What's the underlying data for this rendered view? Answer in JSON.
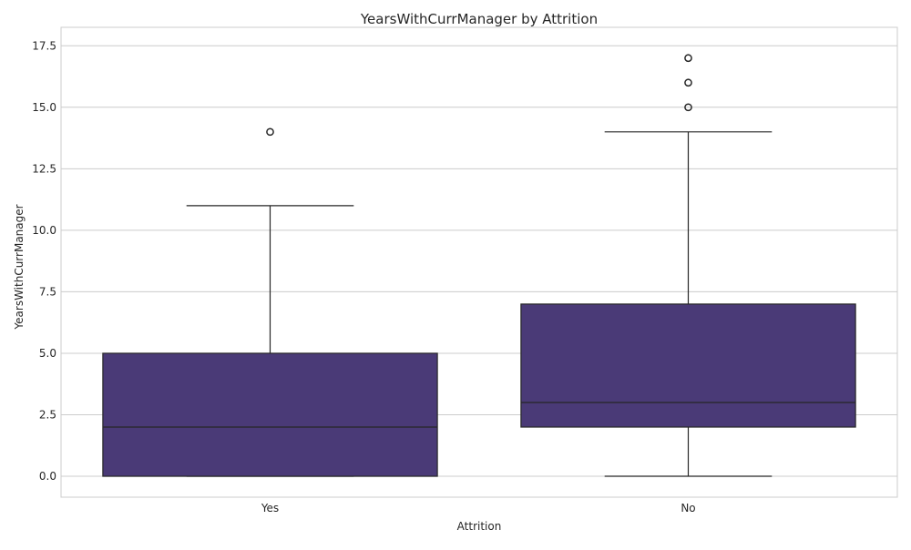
{
  "chart_data": {
    "type": "box",
    "title": "YearsWithCurrManager by Attrition",
    "xlabel": "Attrition",
    "ylabel": "YearsWithCurrManager",
    "ylim": [
      -0.85,
      18.25
    ],
    "yticks": [
      "0.0",
      "2.5",
      "5.0",
      "7.5",
      "10.0",
      "12.5",
      "15.0",
      "17.5"
    ],
    "ytick_values": [
      0,
      2.5,
      5,
      7.5,
      10,
      12.5,
      15,
      17.5
    ],
    "grid": true,
    "box_color": "#4a3a77",
    "edge_color": "#262626",
    "grid_color": "#cccccc",
    "categories": [
      "Yes",
      "No"
    ],
    "boxes": [
      {
        "category": "Yes",
        "whisker_low": 0,
        "q1": 0,
        "median": 2,
        "q3": 5,
        "whisker_high": 11,
        "outliers": [
          14
        ]
      },
      {
        "category": "No",
        "whisker_low": 0,
        "q1": 2,
        "median": 3,
        "q3": 7,
        "whisker_high": 14,
        "outliers": [
          15,
          16,
          17
        ]
      }
    ]
  }
}
